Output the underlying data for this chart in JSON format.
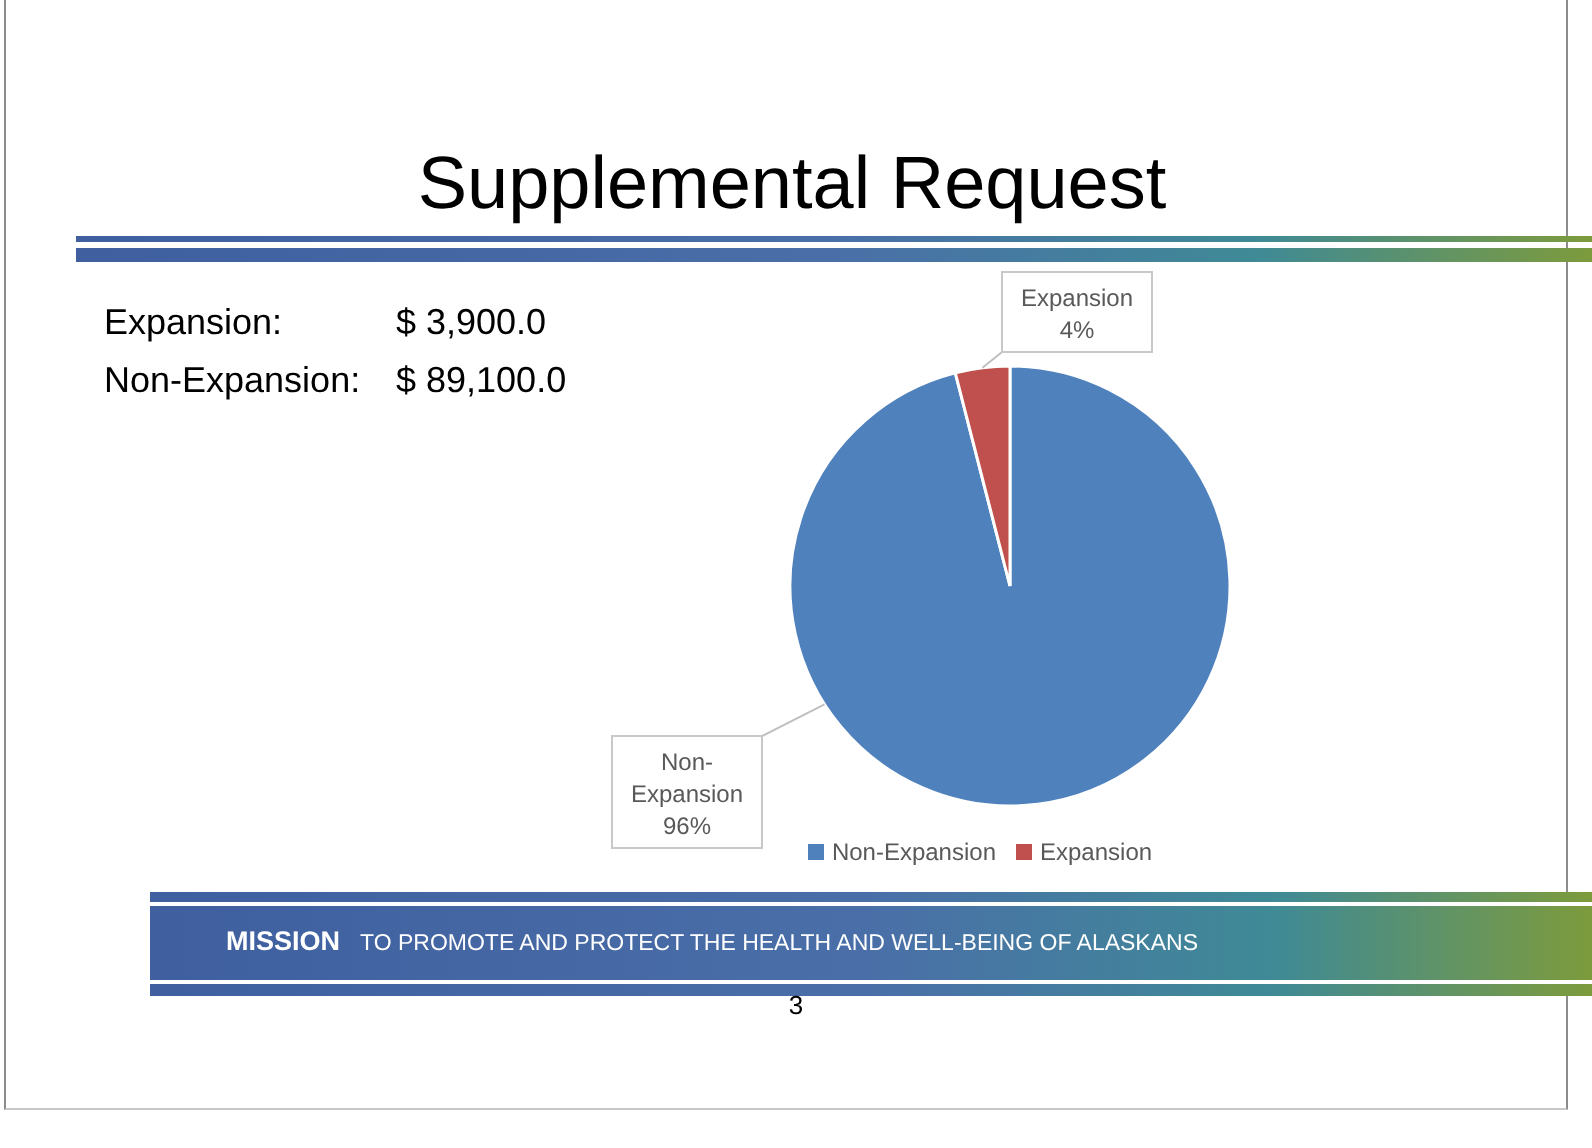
{
  "chart_data": {
    "type": "pie",
    "title": "Supplemental Request",
    "categories": [
      "Non-Expansion",
      "Expansion"
    ],
    "values": [
      96,
      4
    ],
    "colors": [
      "#4f81bd",
      "#c0504d"
    ],
    "value_labels": [
      "96%",
      "4%"
    ],
    "legend": "bottom",
    "annotations": [
      "Expansion: $ 3,900.0",
      "Non-Expansion: $ 89,100.0",
      "MISSION TO PROMOTE AND PROTECT THE HEALTH AND WELL-BEING OF ALASKANS",
      "3"
    ]
  }
}
